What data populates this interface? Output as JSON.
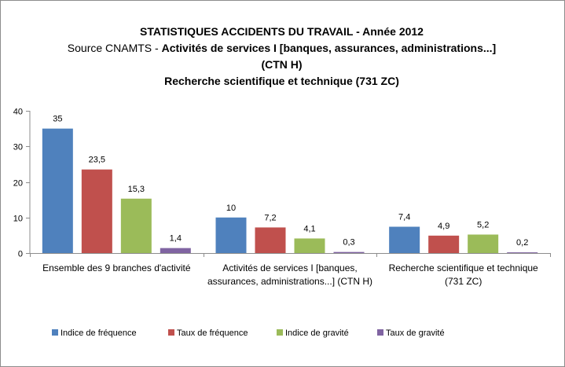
{
  "chart_data": {
    "type": "bar",
    "title_line1": "STATISTIQUES ACCIDENTS DU TRAVAIL - Année 2012",
    "title_line2_prefix": "Source CNAMTS - ",
    "title_line2_bold": "Activités de services I [banques, assurances, administrations...]",
    "title_line3": "(CTN H)",
    "title_line4": "Recherche scientifique et technique (731 ZC)",
    "categories": [
      [
        "Ensemble des 9 branches d'activité"
      ],
      [
        "Activités de services I [banques,",
        "assurances, administrations...] (CTN H)"
      ],
      [
        "Recherche scientifique et technique",
        "(731 ZC)"
      ]
    ],
    "series": [
      {
        "name": "Indice de fréquence",
        "color": "#4f81bd",
        "values": [
          35,
          10,
          7.4
        ],
        "labels": [
          "35",
          "10",
          "7,4"
        ]
      },
      {
        "name": "Taux de fréquence",
        "color": "#c0504d",
        "values": [
          23.5,
          7.2,
          4.9
        ],
        "labels": [
          "23,5",
          "7,2",
          "4,9"
        ]
      },
      {
        "name": "Indice de gravité",
        "color": "#9bbb59",
        "values": [
          15.3,
          4.1,
          5.2
        ],
        "labels": [
          "15,3",
          "4,1",
          "5,2"
        ]
      },
      {
        "name": "Taux de gravité",
        "color": "#8064a2",
        "values": [
          1.4,
          0.3,
          0.2
        ],
        "labels": [
          "1,4",
          "0,3",
          "0,2"
        ]
      }
    ],
    "ylim": [
      0,
      40
    ],
    "yticks": [
      "0",
      "10",
      "20",
      "30",
      "40"
    ],
    "grid": false,
    "legend_position": "bottom"
  }
}
